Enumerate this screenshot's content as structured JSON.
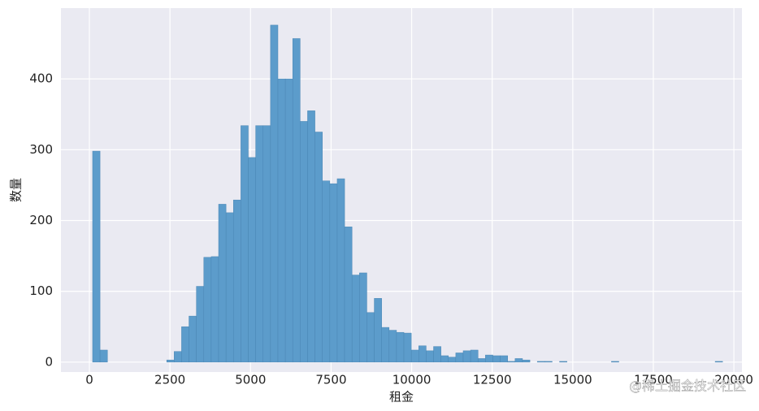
{
  "chart_data": {
    "type": "histogram",
    "xlabel": "租金",
    "ylabel": "数量",
    "watermark": "@稀土掘金技术社区",
    "bins": [
      100,
      330,
      560,
      790,
      1020,
      1250,
      1480,
      1710,
      1940,
      2170,
      2400,
      2630,
      2860,
      3090,
      3320,
      3550,
      3780,
      4010,
      4240,
      4470,
      4700,
      4930,
      5160,
      5390,
      5620,
      5850,
      6080,
      6310,
      6540,
      6770,
      7000,
      7230,
      7460,
      7690,
      7920,
      8150,
      8380,
      8610,
      8840,
      9070,
      9300,
      9530,
      9760,
      9990,
      10220,
      10450,
      10680,
      10910,
      11140,
      11370,
      11600,
      11830,
      12060,
      12290,
      12520,
      12750,
      12980,
      13210,
      13440,
      13670,
      13900,
      14130,
      14360,
      14590,
      14820,
      15050,
      15280,
      15510,
      15740,
      15970,
      16200,
      16430,
      16660,
      16890,
      17120,
      17350,
      17580,
      17810,
      18040,
      18270,
      18500,
      18730,
      18960,
      19190,
      19420,
      19650,
      19880
    ],
    "counts": [
      298,
      17,
      0,
      0,
      0,
      0,
      0,
      0,
      0,
      0,
      3,
      15,
      50,
      65,
      107,
      148,
      149,
      223,
      211,
      229,
      334,
      289,
      334,
      334,
      476,
      400,
      400,
      457,
      340,
      355,
      325,
      256,
      252,
      259,
      191,
      123,
      126,
      70,
      90,
      49,
      45,
      42,
      41,
      17,
      23,
      16,
      22,
      9,
      7,
      13,
      16,
      17,
      5,
      10,
      9,
      9,
      1,
      5,
      3,
      0,
      1,
      1,
      0,
      1,
      0,
      0,
      0,
      0,
      0,
      0,
      1,
      0,
      0,
      0,
      0,
      0,
      0,
      0,
      0,
      0,
      0,
      0,
      0,
      0,
      1,
      0
    ],
    "color": "#5c9ccb",
    "background": "#eaeaf2",
    "grid": true,
    "xlim": [
      -883,
      20250
    ],
    "xticks": [
      0,
      2500,
      5000,
      7500,
      10000,
      12500,
      15000,
      17500,
      20000
    ],
    "ylim": [
      -14,
      500
    ],
    "yticks": [
      0,
      100,
      200,
      300,
      400
    ]
  }
}
